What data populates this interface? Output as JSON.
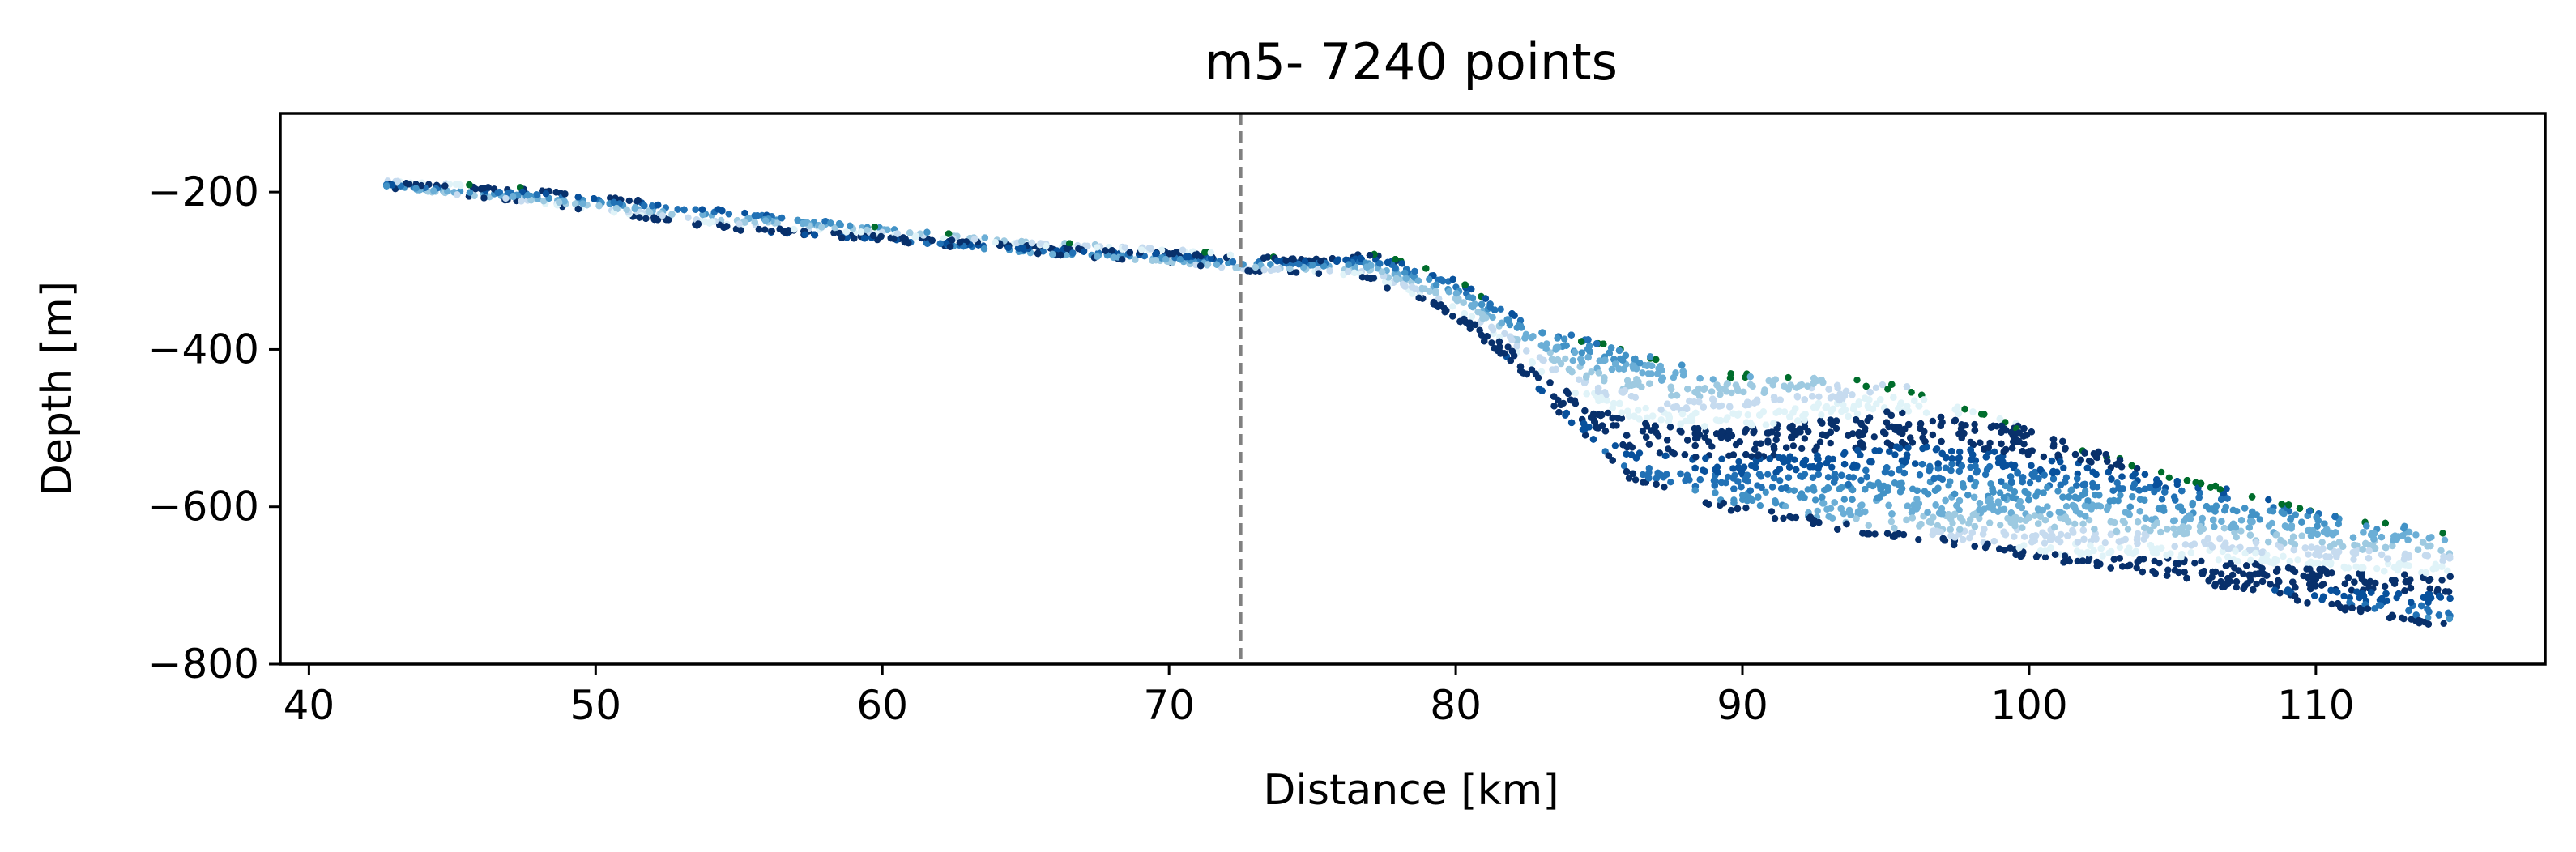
{
  "chart_data": {
    "type": "scatter",
    "title": "m5- 7240 points",
    "xlabel": "Distance [km]",
    "ylabel": "Depth [m]",
    "xlim": [
      39,
      118
    ],
    "ylim": [
      -800,
      -100
    ],
    "xticks": [
      40,
      50,
      60,
      70,
      80,
      90,
      100,
      110
    ],
    "yticks": [
      -200,
      -400,
      -600,
      -800
    ],
    "xtick_labels": [
      "40",
      "50",
      "60",
      "70",
      "80",
      "90",
      "100",
      "110"
    ],
    "ytick_labels": [
      "−200",
      "−400",
      "−600",
      "−800"
    ],
    "grid": false,
    "reference_line": {
      "x": 72.5,
      "style": "dashed",
      "color": "#808080"
    },
    "point_count": 7240,
    "colors": [
      "#08306b",
      "#08519c",
      "#2171b5",
      "#4292c6",
      "#6baed6",
      "#9ecae1",
      "#c6dbef",
      "#e0f3f8",
      "#006d2c"
    ],
    "profile": {
      "x": [
        42.7,
        48,
        55,
        60,
        65,
        70,
        72.5,
        75,
        77,
        78,
        80,
        82,
        84,
        86,
        88,
        90,
        95,
        98,
        100,
        105,
        110,
        114.7
      ],
      "top": [
        -185,
        -195,
        -225,
        -245,
        -262,
        -272,
        -280,
        -285,
        -278,
        -285,
        -310,
        -355,
        -380,
        -400,
        -420,
        -430,
        -440,
        -470,
        -500,
        -560,
        -605,
        -635
      ],
      "bottom": [
        -195,
        -215,
        -250,
        -262,
        -278,
        -290,
        -300,
        -303,
        -310,
        -330,
        -360,
        -420,
        -500,
        -565,
        -590,
        -610,
        -640,
        -655,
        -665,
        -690,
        -725,
        -755
      ]
    }
  }
}
